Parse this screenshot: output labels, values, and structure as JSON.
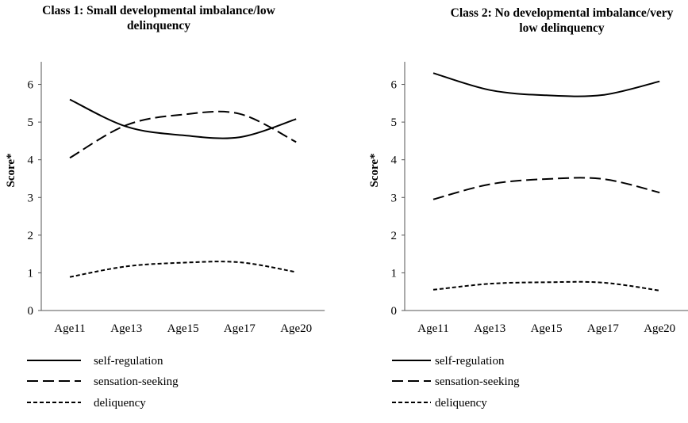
{
  "chart_data": [
    {
      "type": "line",
      "title": "Class 1: Small developmental imbalance/low delinquency",
      "title_lines": [
        "Class 1: Small developmental imbalance/low",
        "delinquency"
      ],
      "ylabel": "Score*",
      "xlabel": "",
      "categories": [
        "Age11",
        "Age13",
        "Age15",
        "Age17",
        "Age20"
      ],
      "yticks": [
        0,
        1,
        2,
        3,
        4,
        5,
        6
      ],
      "ylim": [
        0,
        6.6
      ],
      "grid": false,
      "legend_position": "bottom-left",
      "series": [
        {
          "name": "self-regulation",
          "style": "solid",
          "values": [
            5.6,
            4.88,
            4.65,
            4.6,
            5.08
          ]
        },
        {
          "name": "sensation-seeking",
          "style": "dashed",
          "values": [
            4.05,
            4.92,
            5.2,
            5.22,
            4.47
          ]
        },
        {
          "name": "deliquency",
          "style": "dotted",
          "values": [
            0.89,
            1.17,
            1.27,
            1.28,
            1.02
          ]
        }
      ]
    },
    {
      "type": "line",
      "title": "Class 2: No developmental imbalance/very low delinquency",
      "title_lines": [
        "Class 2: No developmental imbalance/very",
        "low delinquency"
      ],
      "ylabel": "Score*",
      "xlabel": "",
      "categories": [
        "Age11",
        "Age13",
        "Age15",
        "Age17",
        "Age20"
      ],
      "yticks": [
        0,
        1,
        2,
        3,
        4,
        5,
        6
      ],
      "ylim": [
        0,
        6.6
      ],
      "grid": false,
      "legend_position": "bottom-left",
      "series": [
        {
          "name": "self-regulation",
          "style": "solid",
          "values": [
            6.3,
            5.85,
            5.71,
            5.72,
            6.08
          ]
        },
        {
          "name": "sensation-seeking",
          "style": "dashed",
          "values": [
            2.95,
            3.35,
            3.49,
            3.49,
            3.13
          ]
        },
        {
          "name": "deliquency",
          "style": "dotted",
          "values": [
            0.55,
            0.71,
            0.75,
            0.74,
            0.53
          ]
        }
      ]
    }
  ]
}
